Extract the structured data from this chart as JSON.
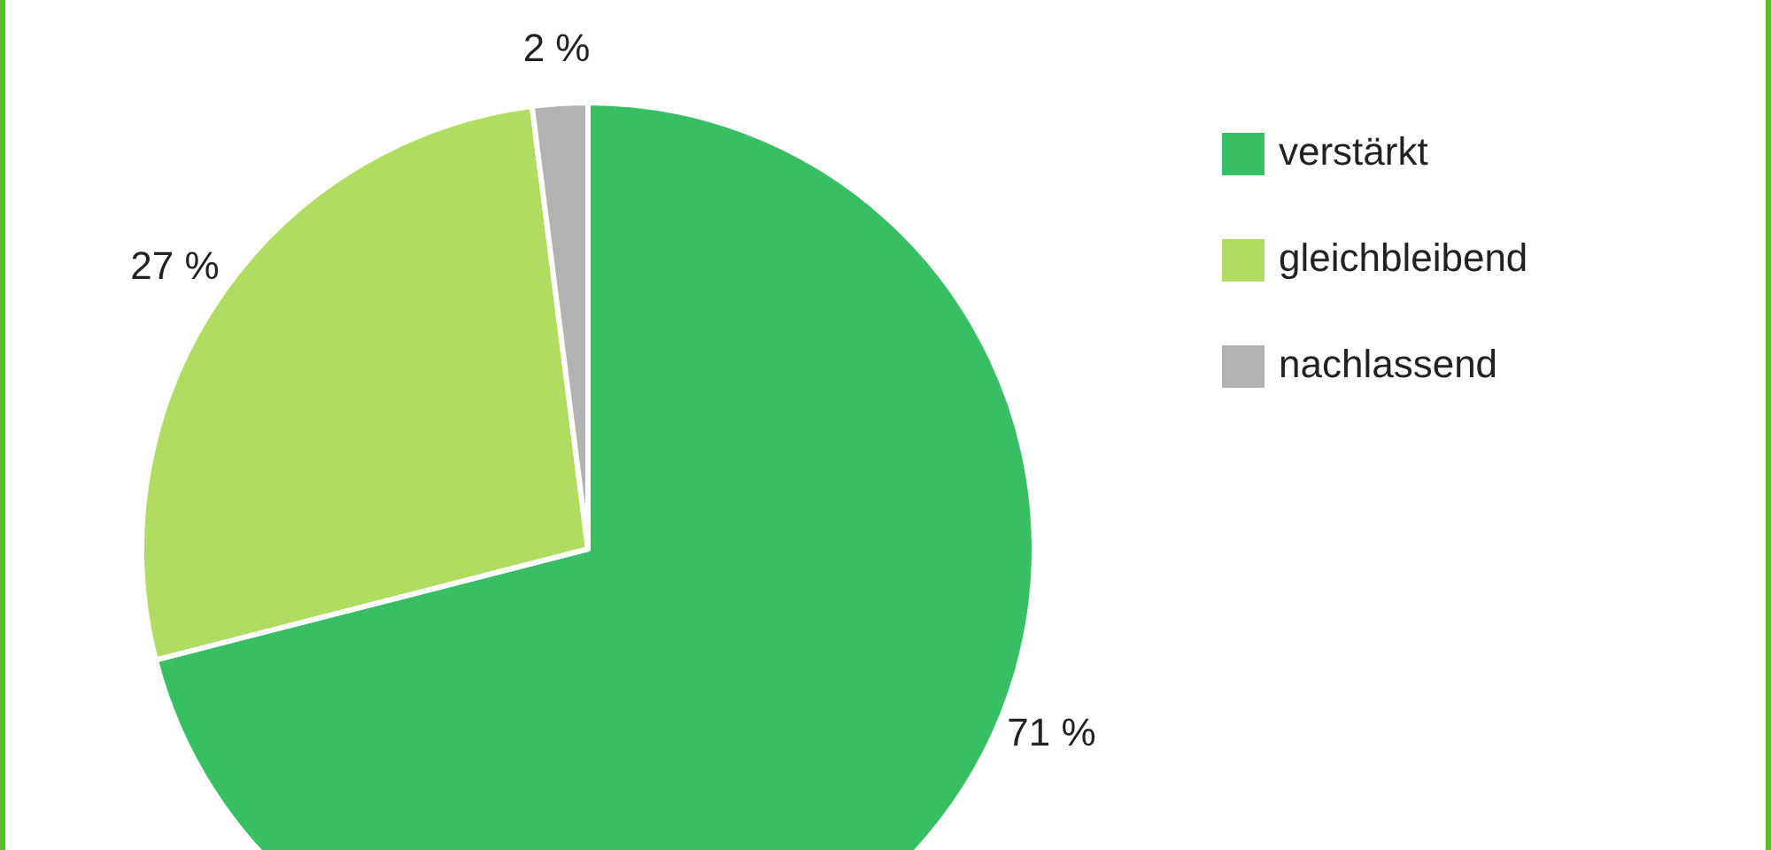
{
  "chart_data": {
    "type": "pie",
    "categories": [
      "verstärkt",
      "gleichbleibend",
      "nachlassend"
    ],
    "values": [
      71,
      27,
      2
    ],
    "colors": [
      "#38bf63",
      "#b0dc62",
      "#b2b2b2"
    ],
    "value_labels": [
      "71 %",
      "27 %",
      "2 %"
    ],
    "legend": "top right"
  }
}
